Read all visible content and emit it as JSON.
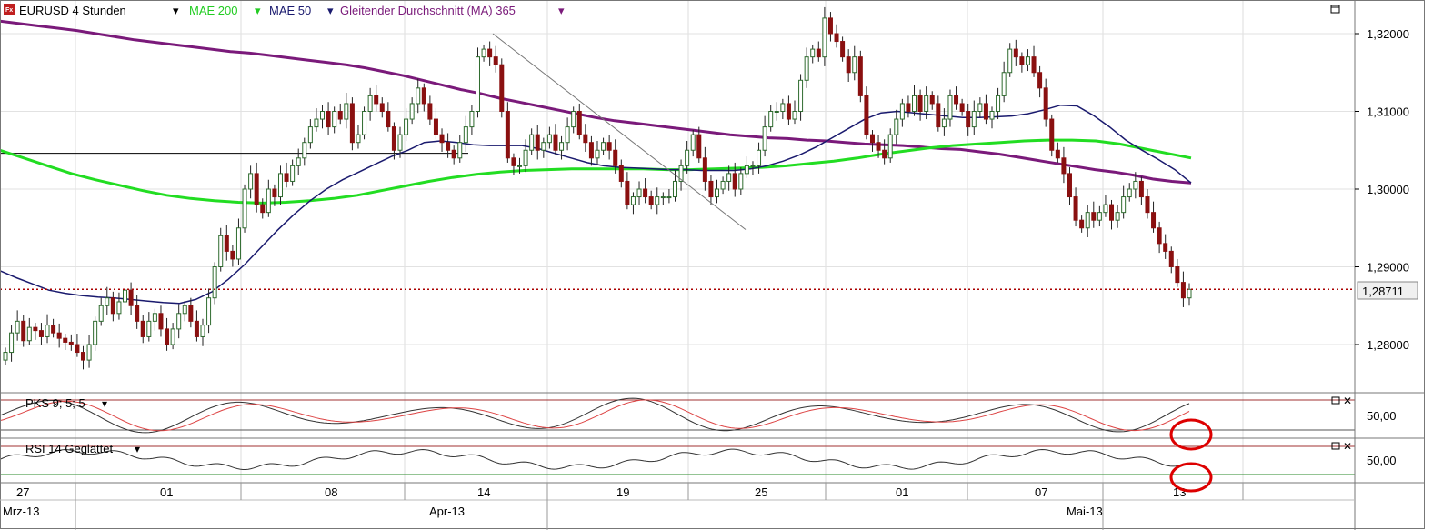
{
  "header": {
    "symbol": "EURUSD 4 Stunden",
    "ind1": "MAE 200",
    "ind2": "MAE 50",
    "ind3": "Gleitender Durchschnitt (MA) 365"
  },
  "colors": {
    "mae200": "#22dd22",
    "mae50": "#1a1a6e",
    "ma365": "#7a1a7a",
    "up": "#2e6b2e",
    "down": "#8a1010",
    "pricemarker": "#aa0000",
    "circle": "#dd0000"
  },
  "price_label": "1,28711",
  "panels": {
    "pks_label": "PKS 9; 5; 5",
    "rsi_label": "RSI 14 Geglättet",
    "pks_value": "50,00",
    "rsi_value": "50,00"
  },
  "chart_data": {
    "type": "candlestick",
    "title": "EURUSD 4 Stunden",
    "ylim": [
      1.274,
      1.324
    ],
    "yticks": [
      "1,32000",
      "1,31000",
      "1,30000",
      "1,29000",
      "1,28000"
    ],
    "ytick_values": [
      1.32,
      1.31,
      1.3,
      1.29,
      1.28
    ],
    "last_price": 1.28711,
    "xticks": [
      "27",
      "01",
      "08",
      "14",
      "19",
      "25",
      "01",
      "07",
      "13"
    ],
    "xmonths": [
      "Mrz-13",
      "Apr-13",
      "Mai-13"
    ],
    "horizontal_line": 1.3046,
    "trendline": [
      [
        1.32,
        "Apr-14"
      ],
      [
        1.2948,
        "Apr-23"
      ]
    ],
    "closes": [
      1.279,
      1.2815,
      1.283,
      1.2805,
      1.2822,
      1.2818,
      1.281,
      1.2825,
      1.2815,
      1.2808,
      1.2803,
      1.28,
      1.279,
      1.278,
      1.28,
      1.283,
      1.285,
      1.286,
      1.284,
      1.2855,
      1.287,
      1.285,
      1.283,
      1.281,
      1.283,
      1.284,
      1.282,
      1.28,
      1.282,
      1.284,
      1.285,
      1.283,
      1.281,
      1.2825,
      1.286,
      1.29,
      1.294,
      1.292,
      1.291,
      1.295,
      1.3,
      1.302,
      1.298,
      1.297,
      1.3,
      1.299,
      1.302,
      1.301,
      1.303,
      1.304,
      1.306,
      1.308,
      1.309,
      1.31,
      1.308,
      1.31,
      1.309,
      1.311,
      1.306,
      1.307,
      1.31,
      1.312,
      1.311,
      1.31,
      1.308,
      1.305,
      1.307,
      1.309,
      1.311,
      1.313,
      1.311,
      1.309,
      1.307,
      1.306,
      1.305,
      1.304,
      1.306,
      1.308,
      1.31,
      1.317,
      1.318,
      1.317,
      1.316,
      1.31,
      1.304,
      1.303,
      1.303,
      1.305,
      1.307,
      1.305,
      1.306,
      1.307,
      1.305,
      1.306,
      1.308,
      1.31,
      1.307,
      1.306,
      1.304,
      1.305,
      1.306,
      1.305,
      1.303,
      1.301,
      1.298,
      1.299,
      1.3,
      1.299,
      1.298,
      1.299,
      1.299,
      1.299,
      1.301,
      1.303,
      1.305,
      1.307,
      1.304,
      1.301,
      1.299,
      1.3,
      1.301,
      1.302,
      1.3,
      1.302,
      1.303,
      1.303,
      1.305,
      1.308,
      1.31,
      1.31,
      1.311,
      1.309,
      1.31,
      1.314,
      1.317,
      1.318,
      1.317,
      1.322,
      1.32,
      1.319,
      1.317,
      1.315,
      1.317,
      1.312,
      1.307,
      1.306,
      1.305,
      1.304,
      1.307,
      1.309,
      1.311,
      1.31,
      1.312,
      1.31,
      1.312,
      1.311,
      1.308,
      1.309,
      1.312,
      1.311,
      1.31,
      1.308,
      1.31,
      1.311,
      1.309,
      1.31,
      1.312,
      1.315,
      1.318,
      1.317,
      1.316,
      1.317,
      1.315,
      1.313,
      1.309,
      1.305,
      1.304,
      1.302,
      1.299,
      1.296,
      1.295,
      1.297,
      1.296,
      1.297,
      1.298,
      1.296,
      1.297,
      1.299,
      1.3,
      1.301,
      1.299,
      1.297,
      1.295,
      1.293,
      1.292,
      1.29,
      1.288,
      1.286,
      1.2871
    ],
    "series": [
      {
        "name": "MAE 200",
        "values": [
          1.305,
          1.304,
          1.303,
          1.302,
          1.3012,
          1.3005,
          1.2998,
          1.2992,
          1.2988,
          1.2985,
          1.2983,
          1.2982,
          1.2983,
          1.2985,
          1.2988,
          1.2992,
          1.2998,
          1.3004,
          1.301,
          1.3015,
          1.3019,
          1.3022,
          1.3024,
          1.3025,
          1.3026,
          1.3026,
          1.3026,
          1.3026,
          1.3025,
          1.3025,
          1.3026,
          1.3027,
          1.3028,
          1.303,
          1.3033,
          1.3036,
          1.304,
          1.3045,
          1.3049,
          1.3053,
          1.3056,
          1.3058,
          1.306,
          1.3062,
          1.3063,
          1.3063,
          1.3062,
          1.3058,
          1.3052,
          1.3046,
          1.304
        ]
      },
      {
        "name": "MAE 50",
        "values": [
          1.2895,
          1.2886,
          1.2878,
          1.287,
          1.2866,
          1.2863,
          1.2861,
          1.286,
          1.2858,
          1.2856,
          1.2854,
          1.2853,
          1.2858,
          1.2868,
          1.2884,
          1.2903,
          1.2925,
          1.2947,
          1.2967,
          1.2985,
          1.3,
          1.3012,
          1.3022,
          1.3032,
          1.3042,
          1.305,
          1.306,
          1.3062,
          1.306,
          1.3057,
          1.3056,
          1.3056,
          1.3056,
          1.3052,
          1.3046,
          1.304,
          1.3034,
          1.303,
          1.3028,
          1.3027,
          1.3026,
          1.3025,
          1.3025,
          1.3024,
          1.3024,
          1.3024,
          1.3026,
          1.303,
          1.3036,
          1.3044,
          1.3054,
          1.3066,
          1.3078,
          1.309,
          1.3098,
          1.31,
          1.3098,
          1.3096,
          1.3094,
          1.3092,
          1.3092,
          1.3093,
          1.3094,
          1.3097,
          1.3102,
          1.3108,
          1.3107,
          1.3095,
          1.308,
          1.3063,
          1.305,
          1.3038,
          1.3025,
          1.3008
        ]
      },
      {
        "name": "Gleitender Durchschnitt (MA) 365",
        "values": [
          1.3216,
          1.3213,
          1.321,
          1.3207,
          1.3204,
          1.32,
          1.3196,
          1.3192,
          1.3189,
          1.3186,
          1.3183,
          1.318,
          1.3177,
          1.3175,
          1.3172,
          1.3169,
          1.3166,
          1.3163,
          1.316,
          1.3156,
          1.3151,
          1.3146,
          1.314,
          1.3134,
          1.3128,
          1.3123,
          1.3117,
          1.3112,
          1.3107,
          1.3102,
          1.3097,
          1.3092,
          1.3088,
          1.3085,
          1.3082,
          1.3079,
          1.3076,
          1.3073,
          1.307,
          1.3068,
          1.3066,
          1.3065,
          1.3063,
          1.3062,
          1.306,
          1.3058,
          1.3057,
          1.3056,
          1.3054,
          1.3052,
          1.3051,
          1.3048,
          1.3045,
          1.3041,
          1.3037,
          1.3033,
          1.3029,
          1.3025,
          1.3022,
          1.3018,
          1.3013,
          1.301,
          1.3008
        ]
      }
    ]
  }
}
